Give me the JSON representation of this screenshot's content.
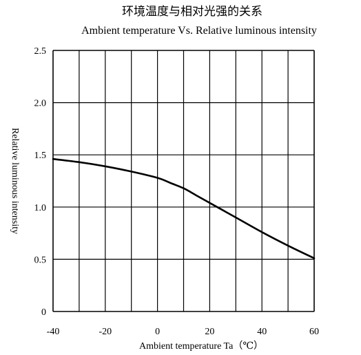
{
  "chart_data": {
    "type": "line",
    "title": "环境温度与相对光强的关系",
    "subtitle": "Ambient temperature  Vs.  Relative luminous intensity",
    "xlabel": "Ambient temperature Ta（℃）",
    "ylabel": "Relative luminous intensity",
    "xlim": [
      -40,
      60
    ],
    "ylim": [
      0,
      2.5
    ],
    "xticks": [
      -40,
      -20,
      0,
      20,
      40,
      60
    ],
    "xtick_labels": [
      "-40",
      "-20",
      "0",
      "20",
      "40",
      "60"
    ],
    "yticks": [
      0,
      0.5,
      1.0,
      1.5,
      2.0,
      2.5
    ],
    "ytick_labels": [
      "0",
      "0.5",
      "1.0",
      "1.5",
      "2.0",
      "2.5"
    ],
    "x_gridlines": [
      -40,
      -30,
      -20,
      -10,
      0,
      10,
      20,
      30,
      40,
      50,
      60
    ],
    "y_gridlines": [
      0,
      0.5,
      1.0,
      1.5,
      2.0,
      2.5
    ],
    "grid": true,
    "series": [
      {
        "x": [
          -40,
          -30,
          -20,
          -10,
          0,
          5,
          10,
          15,
          20,
          25,
          30,
          40,
          50,
          60
        ],
        "values": [
          1.46,
          1.43,
          1.39,
          1.34,
          1.28,
          1.23,
          1.18,
          1.11,
          1.04,
          0.97,
          0.9,
          0.76,
          0.63,
          0.51
        ]
      }
    ],
    "colors": {
      "line": "#000000",
      "grid": "#000000"
    }
  }
}
